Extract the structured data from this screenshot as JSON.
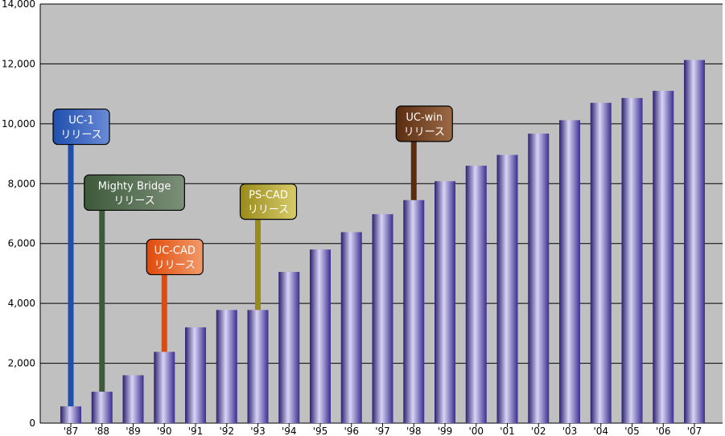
{
  "chart_data": {
    "type": "bar",
    "title": "",
    "xlabel": "",
    "ylabel": "",
    "categories": [
      "'87",
      "'88",
      "'89",
      "'90",
      "'91",
      "'92",
      "'93",
      "'94",
      "'95",
      "'96",
      "'97",
      "'98",
      "'99",
      "'00",
      "'01",
      "'02",
      "'03",
      "'04",
      "'05",
      "'06",
      "'07"
    ],
    "values": [
      560,
      1050,
      1600,
      2380,
      3200,
      3780,
      3780,
      5050,
      5800,
      6380,
      6980,
      7450,
      8080,
      8600,
      8960,
      9670,
      10120,
      10700,
      10860,
      11100,
      12130
    ],
    "ylim": [
      0,
      14000
    ],
    "yticks": [
      "0",
      "2,000",
      "4,000",
      "6,000",
      "8,000",
      "10,000",
      "12,000",
      "14,000"
    ],
    "ytick_values": [
      0,
      2000,
      4000,
      6000,
      8000,
      10000,
      12000,
      14000
    ],
    "grid": true,
    "legend": "none",
    "colors": {
      "plot_bg": "#c0c0c0",
      "bar_dark": "#2a2070",
      "bar_light": "#d8d4f4",
      "bar_mid": "#7468c8",
      "grid": "#000000"
    },
    "annotations": [
      {
        "line1": "UC-1",
        "line2": "リリース",
        "category": "'87",
        "level": 9900,
        "color": "#1f4fae",
        "color_light": "#6a8ad6",
        "text_color": "#ffffff"
      },
      {
        "line1": "Mighty Bridge",
        "line2": "リリース",
        "category": "'88",
        "level": 7700,
        "color": "#3d5a3a",
        "color_light": "#7c8f78",
        "text_color": "#ffffff"
      },
      {
        "line1": "UC-CAD",
        "line2": "リリース",
        "category": "'90",
        "level": 5550,
        "color": "#e04a0a",
        "color_light": "#f29a6a",
        "text_color": "#ffffff"
      },
      {
        "line1": "PS-CAD",
        "line2": "リリース",
        "category": "'93",
        "level": 7400,
        "color": "#9a8a1c",
        "color_light": "#d7cc6a",
        "text_color": "#ffffff"
      },
      {
        "line1": "UC-win",
        "line2": "リリース",
        "category": "'98",
        "level": 10000,
        "color": "#5a2c10",
        "color_light": "#9c6a45",
        "text_color": "#ffffff"
      }
    ]
  }
}
